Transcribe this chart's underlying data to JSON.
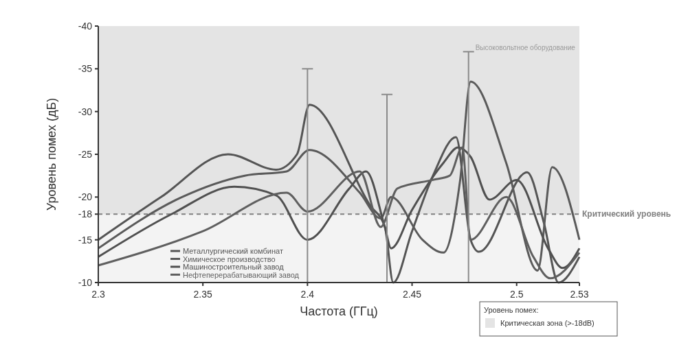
{
  "chart_data": {
    "type": "line",
    "xlabel": "Частота (ГГц)",
    "ylabel": "Уровень помех (дБ)",
    "xlim": [
      2.3,
      2.53
    ],
    "xticks": [
      2.3,
      2.35,
      2.4,
      2.45,
      2.5,
      2.53
    ],
    "ylim": [
      -10,
      -40
    ],
    "yticks": [
      -40,
      -35,
      -30,
      -25,
      -20,
      -18,
      -15,
      -10
    ],
    "legend": "bottom right",
    "legend_title": "Уровень помех:",
    "bands": [
      {
        "axis": "y",
        "from": -18,
        "to": -40,
        "label": "Критическая зона (>-18dB)",
        "color": "#e4e4e4"
      }
    ],
    "ref_lines": [
      {
        "axis": "y",
        "value": -18,
        "label": "Критический уровень",
        "color": "#808080",
        "line_style": "dashed"
      }
    ],
    "series": [
      {
        "name": "Металлургический комбинат",
        "color": "#555555",
        "x": [
          2.3,
          2.33,
          2.362,
          2.385,
          2.395,
          2.401,
          2.43,
          2.437,
          2.441,
          2.45,
          2.46,
          2.471,
          2.478,
          2.482,
          2.505,
          2.513,
          2.52,
          2.53
        ],
        "values": [
          -15,
          -20,
          -25,
          -23.2,
          -25,
          -30.8,
          -19,
          -16.5,
          -10,
          -16,
          -22.5,
          -27,
          -15,
          -13.6,
          -22.9,
          -17,
          -10,
          -13
        ]
      },
      {
        "name": "Химическое производство",
        "color": "#5a5a5a",
        "x": [
          2.3,
          2.34,
          2.37,
          2.39,
          2.401,
          2.425,
          2.435,
          2.44,
          2.455,
          2.465,
          2.473,
          2.478,
          2.495,
          2.51,
          2.517,
          2.53
        ],
        "values": [
          -14,
          -20,
          -22.5,
          -23,
          -25.5,
          -20.5,
          -17.5,
          -20,
          -15,
          -13.5,
          -22,
          -33.5,
          -24,
          -11.4,
          -23.5,
          -15
        ]
      },
      {
        "name": "Машиностроительный завод",
        "color": "#505050",
        "x": [
          2.3,
          2.335,
          2.365,
          2.385,
          2.4,
          2.42,
          2.428,
          2.437,
          2.44,
          2.45,
          2.465,
          2.472,
          2.478,
          2.487,
          2.5,
          2.515,
          2.522,
          2.53
        ],
        "values": [
          -13,
          -18,
          -21.2,
          -20.2,
          -15,
          -21,
          -23,
          -16.5,
          -14,
          -18.5,
          -24,
          -25.8,
          -24.7,
          -19.7,
          -22,
          -14,
          -11.7,
          -14
        ]
      },
      {
        "name": "Нефтеперерабатывающий завод",
        "color": "#5f5f5f",
        "x": [
          2.3,
          2.35,
          2.39,
          2.4,
          2.425,
          2.435,
          2.443,
          2.46,
          2.468,
          2.474,
          2.478,
          2.495,
          2.508,
          2.516,
          2.53
        ],
        "values": [
          -12,
          -16,
          -20.5,
          -18.3,
          -23,
          -16.5,
          -21,
          -22,
          -22.5,
          -25.8,
          -15,
          -20,
          -13,
          -10.5,
          -13.5
        ]
      },
      {
        "name": "Высоковольтное оборудование",
        "type": "bar",
        "color": "#8a8a8a",
        "x": [
          2.4,
          2.438,
          2.477
        ],
        "values": [
          -35,
          -32,
          -37
        ]
      }
    ]
  }
}
